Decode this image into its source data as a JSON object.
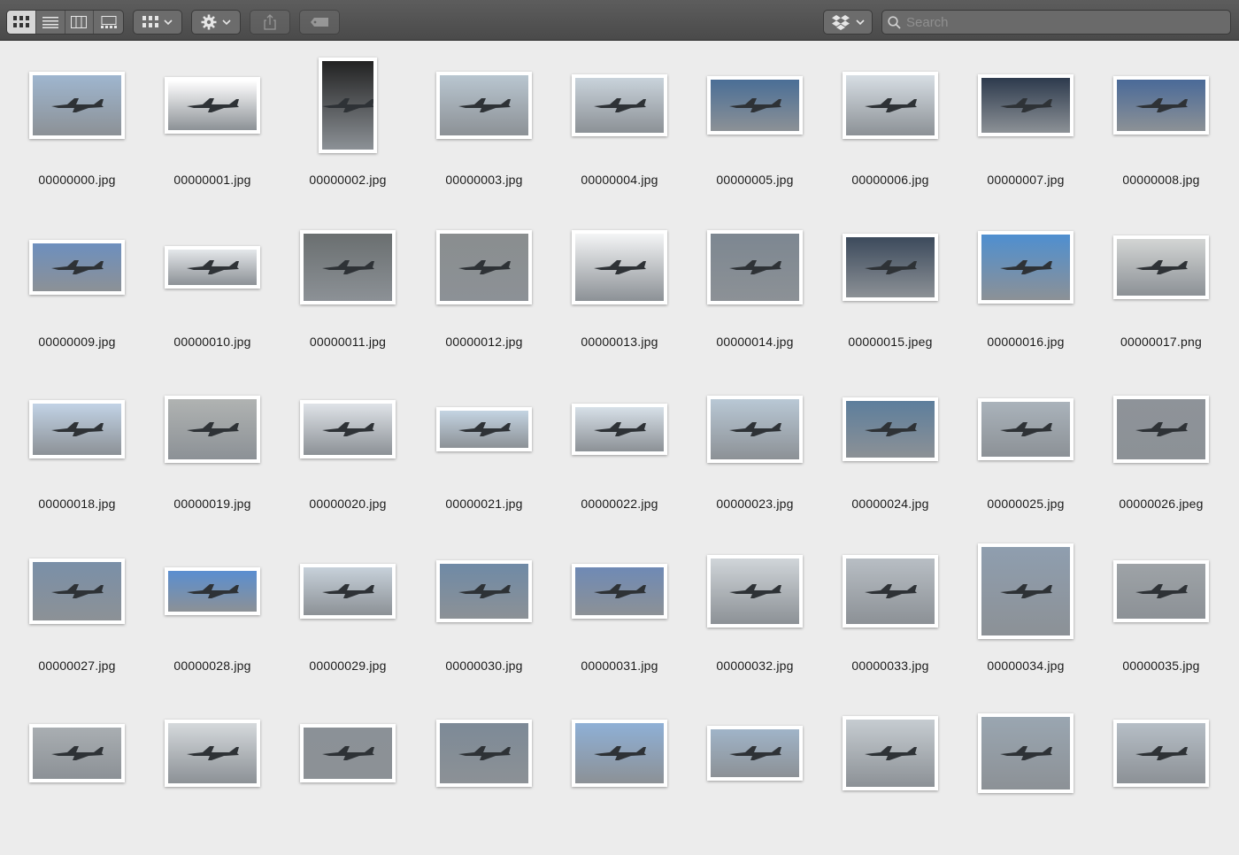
{
  "toolbar": {
    "view_buttons": [
      {
        "name": "icon-view-button",
        "icon": "grid-icon",
        "active": true
      },
      {
        "name": "list-view-button",
        "icon": "list-icon",
        "active": false
      },
      {
        "name": "column-view-button",
        "icon": "columns-icon",
        "active": false
      },
      {
        "name": "gallery-view-button",
        "icon": "gallery-icon",
        "active": false
      }
    ],
    "group_button_icon": "grid-dropdown-icon",
    "action_button_icon": "gear-icon",
    "share_button_icon": "share-icon",
    "tag_button_icon": "tag-icon",
    "dropbox_button_icon": "dropbox-icon",
    "search": {
      "placeholder": "Search",
      "value": ""
    }
  },
  "files": [
    {
      "name": "00000000.jpg",
      "sky": "#9fb6cf"
    },
    {
      "name": "00000001.jpg",
      "sky": "#ffffff"
    },
    {
      "name": "00000002.jpg",
      "sky": "#222222"
    },
    {
      "name": "00000003.jpg",
      "sky": "#b9c6d0"
    },
    {
      "name": "00000004.jpg",
      "sky": "#c9d3db"
    },
    {
      "name": "00000005.jpg",
      "sky": "#4a6e96"
    },
    {
      "name": "00000006.jpg",
      "sky": "#d7dee4"
    },
    {
      "name": "00000007.jpg",
      "sky": "#2d3a4d"
    },
    {
      "name": "00000008.jpg",
      "sky": "#4a6a98"
    },
    {
      "name": "00000009.jpg",
      "sky": "#6d8fbe"
    },
    {
      "name": "00000010.jpg",
      "sky": "#e4e7ea"
    },
    {
      "name": "00000011.jpg",
      "sky": "#6a6f70"
    },
    {
      "name": "00000012.jpg",
      "sky": "#8a8e8f"
    },
    {
      "name": "00000013.jpg",
      "sky": "#f4f5f6"
    },
    {
      "name": "00000014.jpg",
      "sky": "#7d8791"
    },
    {
      "name": "00000015.jpeg",
      "sky": "#3c4a5c"
    },
    {
      "name": "00000016.jpg",
      "sky": "#4f8fd0"
    },
    {
      "name": "00000017.png",
      "sky": "#d3d5d4"
    },
    {
      "name": "00000018.jpg",
      "sky": "#c2d3e6"
    },
    {
      "name": "00000019.jpg",
      "sky": "#b0b3b2"
    },
    {
      "name": "00000020.jpg",
      "sky": "#dfe3e8"
    },
    {
      "name": "00000021.jpg",
      "sky": "#c4d4e2"
    },
    {
      "name": "00000022.jpg",
      "sky": "#d7e0e8"
    },
    {
      "name": "00000023.jpg",
      "sky": "#b9c8d5"
    },
    {
      "name": "00000024.jpg",
      "sky": "#5d7e9c"
    },
    {
      "name": "00000025.jpg",
      "sky": "#aab3bb"
    },
    {
      "name": "00000026.jpeg",
      "sky": "#8e9399"
    },
    {
      "name": "00000027.jpg",
      "sky": "#7a90a8"
    },
    {
      "name": "00000028.jpg",
      "sky": "#5a8ed0"
    },
    {
      "name": "00000029.jpg",
      "sky": "#c7d1da"
    },
    {
      "name": "00000030.jpg",
      "sky": "#6f8aa6"
    },
    {
      "name": "00000031.jpg",
      "sky": "#6f8ab5"
    },
    {
      "name": "00000032.jpg",
      "sky": "#d0d5d9"
    },
    {
      "name": "00000033.jpg",
      "sky": "#b8bec4"
    },
    {
      "name": "00000034.jpg",
      "sky": "#8f9eaf"
    },
    {
      "name": "00000035.jpg",
      "sky": "#9ea3a7"
    },
    {
      "name": "",
      "sky": "#a9aeb2"
    },
    {
      "name": "",
      "sky": "#d5d9dc"
    },
    {
      "name": "",
      "sky": "#8b9197"
    },
    {
      "name": "",
      "sky": "#7d8a97"
    },
    {
      "name": "",
      "sky": "#8fb0d6"
    },
    {
      "name": "",
      "sky": "#a0b4c8"
    },
    {
      "name": "",
      "sky": "#c6ccd1"
    },
    {
      "name": "",
      "sky": "#9aa6b1"
    },
    {
      "name": "",
      "sky": "#b6bec6"
    }
  ]
}
